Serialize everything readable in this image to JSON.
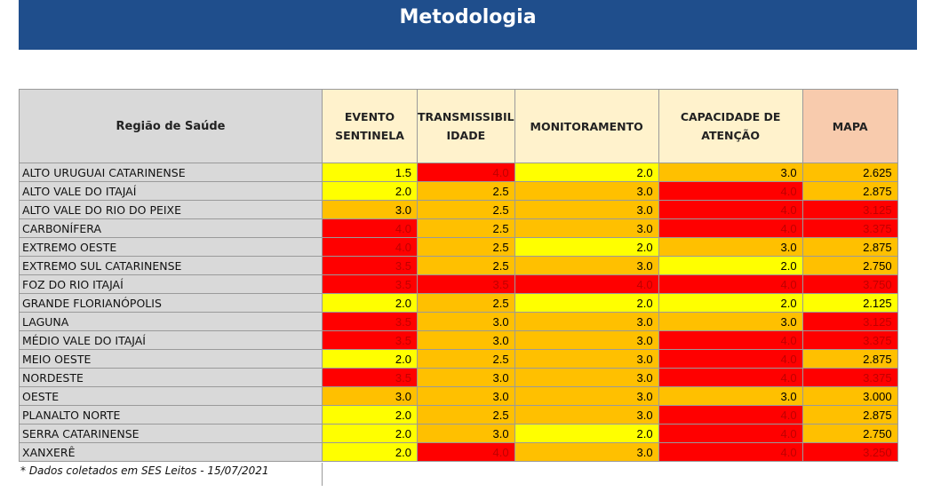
{
  "title": "Metodologia",
  "colors": {
    "banner": "#1f4e8c",
    "red": "#ff0000",
    "orange": "#ffc000",
    "yellow": "#ffff00",
    "region_bg": "#d9d9d9",
    "header_bg": "#fff2cc",
    "mapa_header_bg": "#f8cbad"
  },
  "table": {
    "headers": {
      "region": "Região de Saúde",
      "evento_line1": "EVENTO",
      "evento_line2": "SENTINELA",
      "trans_line1": "TRANSMISSIBIL",
      "trans_line2": "IDADE",
      "monitoramento": "MONITORAMENTO",
      "capacidade_line1": "CAPACIDADE DE",
      "capacidade_line2": "ATENÇÃO",
      "mapa": "MAPA"
    },
    "rows": [
      {
        "region": "ALTO URUGUAI CATARINENSE",
        "evento": "1.5",
        "trans": "4.0",
        "monit": "2.0",
        "capac": "3.0",
        "mapa": "2.625"
      },
      {
        "region": "ALTO VALE DO ITAJAÍ",
        "evento": "2.0",
        "trans": "2.5",
        "monit": "3.0",
        "capac": "4.0",
        "mapa": "2.875"
      },
      {
        "region": "ALTO VALE DO RIO DO PEIXE",
        "evento": "3.0",
        "trans": "2.5",
        "monit": "3.0",
        "capac": "4.0",
        "mapa": "3.125"
      },
      {
        "region": "CARBONÍFERA",
        "evento": "4.0",
        "trans": "2.5",
        "monit": "3.0",
        "capac": "4.0",
        "mapa": "3.375"
      },
      {
        "region": "EXTREMO OESTE",
        "evento": "4.0",
        "trans": "2.5",
        "monit": "2.0",
        "capac": "3.0",
        "mapa": "2.875"
      },
      {
        "region": "EXTREMO SUL CATARINENSE",
        "evento": "3.5",
        "trans": "2.5",
        "monit": "3.0",
        "capac": "2.0",
        "mapa": "2.750"
      },
      {
        "region": "FOZ DO RIO ITAJAÍ",
        "evento": "3.5",
        "trans": "3.5",
        "monit": "4.0",
        "capac": "4.0",
        "mapa": "3.750"
      },
      {
        "region": "GRANDE FLORIANÓPOLIS",
        "evento": "2.0",
        "trans": "2.5",
        "monit": "2.0",
        "capac": "2.0",
        "mapa": "2.125"
      },
      {
        "region": "LAGUNA",
        "evento": "3.5",
        "trans": "3.0",
        "monit": "3.0",
        "capac": "3.0",
        "mapa": "3.125"
      },
      {
        "region": "MÉDIO VALE DO ITAJAÍ",
        "evento": "3.5",
        "trans": "3.0",
        "monit": "3.0",
        "capac": "4.0",
        "mapa": "3.375"
      },
      {
        "region": "MEIO OESTE",
        "evento": "2.0",
        "trans": "2.5",
        "monit": "3.0",
        "capac": "4.0",
        "mapa": "2.875"
      },
      {
        "region": "NORDESTE",
        "evento": "3.5",
        "trans": "3.0",
        "monit": "3.0",
        "capac": "4.0",
        "mapa": "3.375"
      },
      {
        "region": "OESTE",
        "evento": "3.0",
        "trans": "3.0",
        "monit": "3.0",
        "capac": "3.0",
        "mapa": "3.000"
      },
      {
        "region": "PLANALTO NORTE",
        "evento": "2.0",
        "trans": "2.5",
        "monit": "3.0",
        "capac": "4.0",
        "mapa": "2.875"
      },
      {
        "region": "SERRA CATARINENSE",
        "evento": "2.0",
        "trans": "3.0",
        "monit": "2.0",
        "capac": "4.0",
        "mapa": "2.750"
      },
      {
        "region": "XANXERÊ",
        "evento": "2.0",
        "trans": "4.0",
        "monit": "3.0",
        "capac": "4.0",
        "mapa": "3.250"
      }
    ]
  },
  "footnote": "* Dados coletados em SES Leitos - 15/07/2021"
}
